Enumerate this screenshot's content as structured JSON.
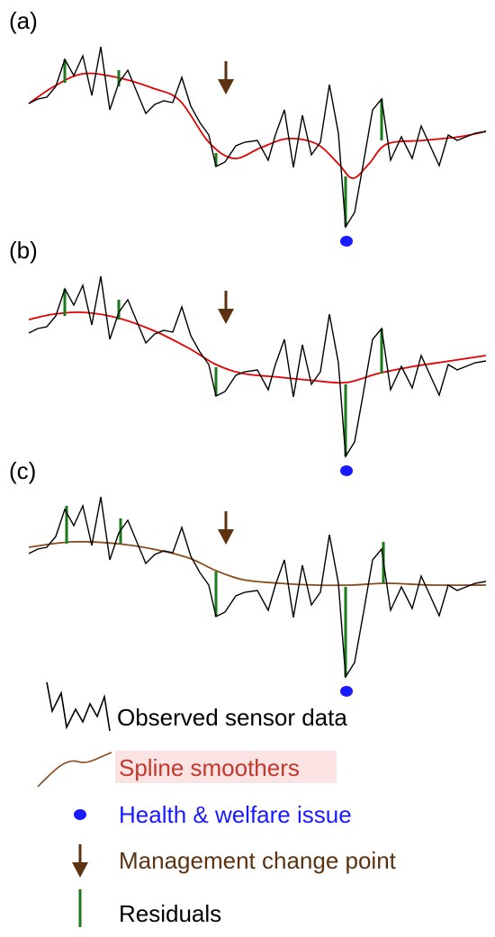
{
  "panels": [
    {
      "label": "(a)",
      "smoother": "tight"
    },
    {
      "label": "(b)",
      "smoother": "medium"
    },
    {
      "label": "(c)",
      "smoother": "loose"
    }
  ],
  "legend": {
    "observed": "Observed sensor data",
    "spline": "Spline smoothers",
    "health": "Health & welfare issue",
    "management": "Management change point",
    "residuals": "Residuals"
  },
  "colors": {
    "observed": "#000000",
    "spline_a": "#e60000",
    "spline_b": "#e60000",
    "spline_c": "#8b4a1c",
    "residual": "#1a7a1a",
    "health": "#1a1aff",
    "management": "#5c3210",
    "spline_text": "#c0392b",
    "spline_text_bg": "#fbe3e3",
    "management_text": "#5c3210",
    "health_text": "#1a1aff",
    "observed_text": "#000000",
    "residuals_text": "#000000"
  },
  "icons": {
    "management": "down-arrow-icon",
    "health": "dot-icon",
    "observed": "zigzag-icon",
    "spline": "curve-icon",
    "residuals": "bar-icon"
  }
}
